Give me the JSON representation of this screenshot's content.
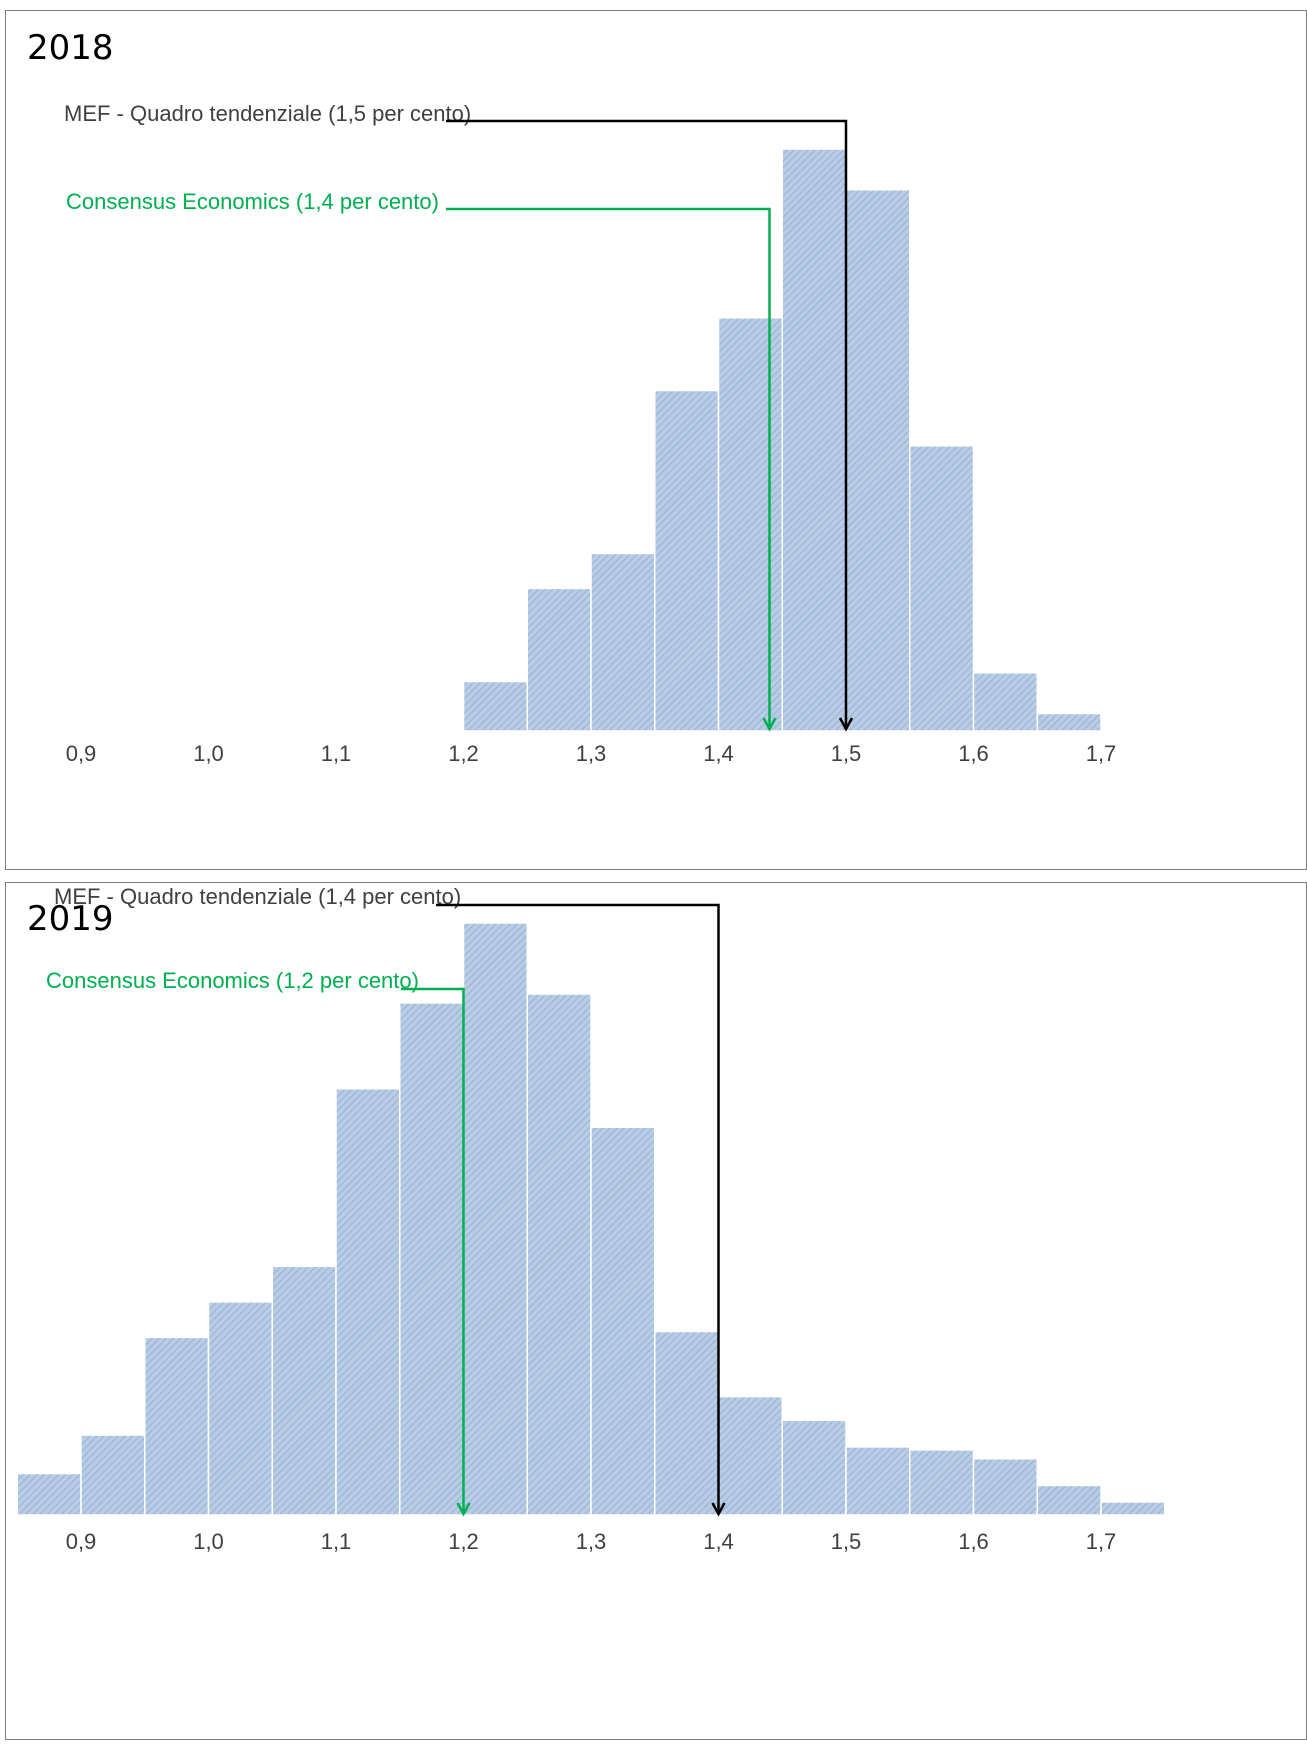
{
  "chart_data": [
    {
      "type": "bar",
      "title": "2018",
      "x_tick_labels": [
        "0,9",
        "1,0",
        "1,1",
        "1,2",
        "1,3",
        "1,4",
        "1,5",
        "1,6",
        "1,7"
      ],
      "x_ticks": [
        0.9,
        1.0,
        1.1,
        1.2,
        1.3,
        1.4,
        1.5,
        1.6,
        1.7
      ],
      "bin_width": 0.05,
      "bins": [
        1.2,
        1.25,
        1.3,
        1.35,
        1.4,
        1.45,
        1.5,
        1.55,
        1.6,
        1.65
      ],
      "values": [
        8.5,
        24.5,
        30.5,
        58.5,
        71,
        100,
        93,
        49,
        10,
        3
      ],
      "value_scale": "relative frequency (no printed axis)",
      "grid": false,
      "legend": "none",
      "bar_color": "#b8cce4",
      "references": [
        {
          "label": "MEF - Quadro tendenziale (1,5 per cento)",
          "x": 1.5,
          "color": "#000000"
        },
        {
          "label": "Consensus Economics (1,4 per cento)",
          "x": 1.44,
          "color": "#00b050"
        }
      ]
    },
    {
      "type": "bar",
      "title": "2019",
      "x_tick_labels": [
        "0,9",
        "1,0",
        "1,1",
        "1,2",
        "1,3",
        "1,4",
        "1,5",
        "1,6",
        "1,7"
      ],
      "x_ticks": [
        0.9,
        1.0,
        1.1,
        1.2,
        1.3,
        1.4,
        1.5,
        1.6,
        1.7
      ],
      "bin_width": 0.05,
      "bins": [
        0.85,
        0.9,
        0.95,
        1.0,
        1.05,
        1.1,
        1.15,
        1.2,
        1.25,
        1.3,
        1.35,
        1.4,
        1.45,
        1.5,
        1.55,
        1.6,
        1.65,
        1.7
      ],
      "values": [
        7,
        13.5,
        30,
        36,
        42,
        72,
        86.5,
        100,
        88,
        65.5,
        31,
        20,
        16,
        11.5,
        11,
        9.5,
        5,
        2.2
      ],
      "value_scale": "relative frequency (no printed axis)",
      "grid": false,
      "legend": "none",
      "bar_color": "#b8cce4",
      "references": [
        {
          "label": "MEF - Quadro tendenziale (1,4 per cento)",
          "x": 1.4,
          "color": "#000000"
        },
        {
          "label": "Consensus Economics (1,2 per cento)",
          "x": 1.2,
          "color": "#00b050"
        }
      ]
    }
  ]
}
